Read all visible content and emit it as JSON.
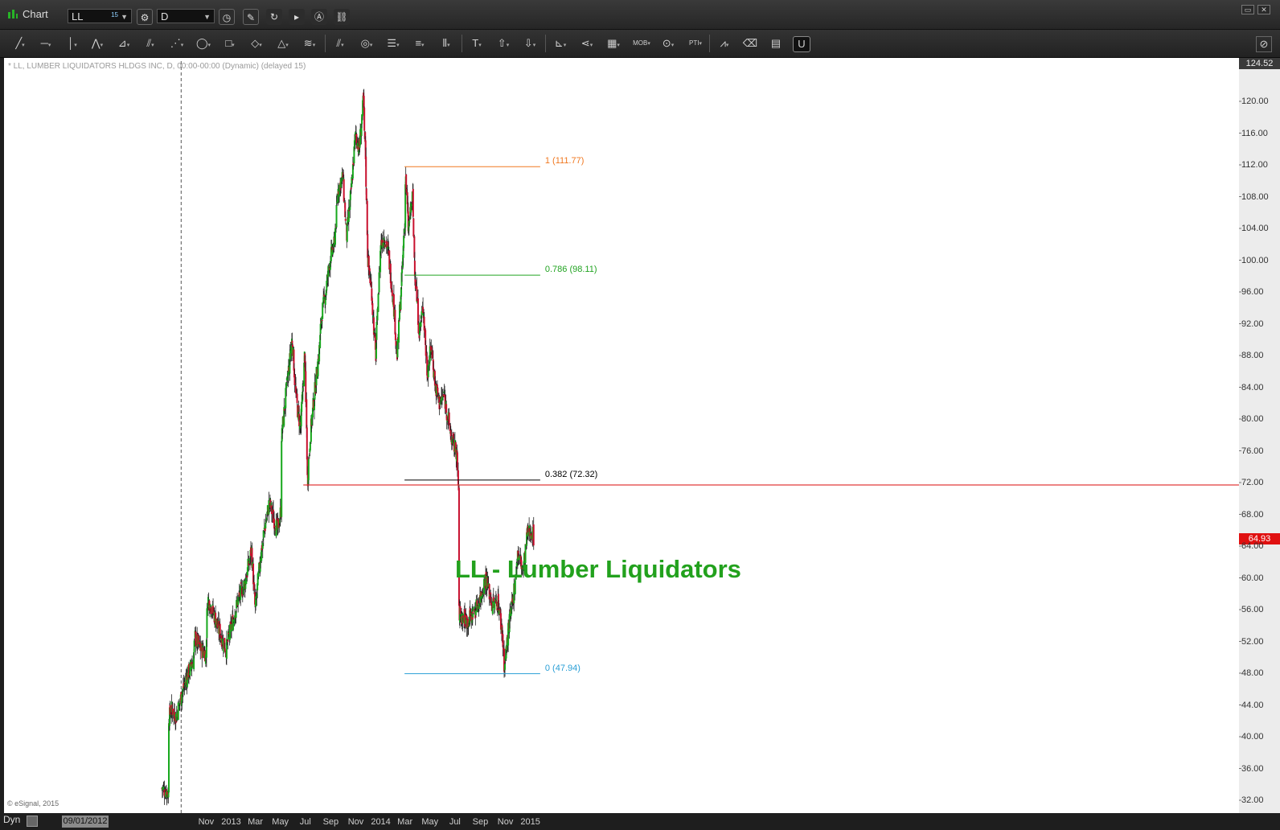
{
  "window": {
    "title": "Chart",
    "symbol": "LL",
    "symbol_sup": "15",
    "interval": "D",
    "symbol_icon": "link-icon",
    "toolbar_icons": [
      "line-tool-icon",
      "horizontal-line-icon",
      "vertical-line-icon",
      "zigzag-icon",
      "fan-icon",
      "andrews-fork-icon",
      "gann-fan-icon",
      "ellipse-icon",
      "rectangle-icon",
      "rotated-rect-icon",
      "triangle-icon",
      "channel-icon",
      "parallel-lines-icon",
      "circles-icon",
      "fib-retracement-icon",
      "fib-extension-icon",
      "fib-timezone-icon",
      "text-icon",
      "arrow-up-icon",
      "arrow-down-icon",
      "elliott-icon",
      "pitchfork-icon",
      "grid-icon",
      "mob-icon",
      "cycle-icon",
      "pti-icon",
      "stats-icon",
      "eraser-icon",
      "comment-icon",
      "magnet-icon"
    ],
    "toolbar_texts": {
      "mob": "MOB",
      "pti": "PTI",
      "text": "T"
    }
  },
  "header": {
    "info": "* LL, LUMBER LIQUIDATORS HLDGS INC, D, 00:00-00:00 (Dynamic) (delayed 15)",
    "copyright": "© eSignal, 2015",
    "dyn_label": "Dyn",
    "cursor_date": "09/01/2012"
  },
  "colors": {
    "up": "#17a81c",
    "down": "#c8102e",
    "wick": "#222222",
    "support": "#e23a3a",
    "fib_1": "#f07820",
    "fib_786": "#21a321",
    "fib_382": "#000000",
    "fib_0": "#2a9fd6",
    "annotation": "#22a11d"
  },
  "chart_data": {
    "type": "candlestick",
    "title": "LL - Lumber Liquidators",
    "ylim": [
      30.5,
      124.52
    ],
    "y_ticks": [
      32,
      36,
      40,
      44,
      48,
      52,
      56,
      60,
      64,
      68,
      72,
      76,
      80,
      84,
      88,
      92,
      96,
      100,
      104,
      108,
      112,
      116,
      120
    ],
    "y_tick_labels": [
      "32.00",
      "36.00",
      "40.00",
      "44.00",
      "48.00",
      "52.00",
      "56.00",
      "60.00",
      "64.00",
      "68.00",
      "72.00",
      "76.00",
      "80.00",
      "84.00",
      "88.00",
      "92.00",
      "96.00",
      "100.00",
      "104.00",
      "108.00",
      "112.00",
      "116.00",
      "120.00"
    ],
    "x_ticks": [
      "Nov",
      "2013",
      "Mar",
      "May",
      "Jul",
      "Sep",
      "Nov",
      "2014",
      "Mar",
      "May",
      "Jul",
      "Sep",
      "Nov",
      "2015"
    ],
    "last_price": 64.93,
    "top_price": 124.52,
    "price_path": [
      [
        "2012-07-16",
        33.5
      ],
      [
        "2012-08-01",
        33.0
      ],
      [
        "2012-08-03",
        42.5
      ],
      [
        "2012-08-10",
        43.5
      ],
      [
        "2012-08-20",
        42.5
      ],
      [
        "2012-09-01",
        45.0
      ],
      [
        "2012-09-15",
        47.5
      ],
      [
        "2012-10-01",
        49.5
      ],
      [
        "2012-10-05",
        52.5
      ],
      [
        "2012-10-20",
        51.0
      ],
      [
        "2012-11-01",
        50.5
      ],
      [
        "2012-11-05",
        57.5
      ],
      [
        "2012-11-20",
        55.5
      ],
      [
        "2012-12-05",
        53.0
      ],
      [
        "2012-12-20",
        51.0
      ],
      [
        "2013-01-05",
        54.5
      ],
      [
        "2013-01-20",
        57.5
      ],
      [
        "2013-02-05",
        59.5
      ],
      [
        "2013-02-20",
        63.5
      ],
      [
        "2013-03-01",
        56.0
      ],
      [
        "2013-03-15",
        63.0
      ],
      [
        "2013-03-25",
        66.5
      ],
      [
        "2013-04-05",
        69.5
      ],
      [
        "2013-04-15",
        67.5
      ],
      [
        "2013-04-25",
        66.0
      ],
      [
        "2013-05-03",
        68.5
      ],
      [
        "2013-05-05",
        78.0
      ],
      [
        "2013-05-20",
        85.5
      ],
      [
        "2013-05-30",
        90.0
      ],
      [
        "2013-06-10",
        82.0
      ],
      [
        "2013-06-20",
        79.0
      ],
      [
        "2013-06-30",
        88.0
      ],
      [
        "2013-07-07",
        72.5
      ],
      [
        "2013-07-15",
        79.0
      ],
      [
        "2013-07-30",
        86.0
      ],
      [
        "2013-08-05",
        89.0
      ],
      [
        "2013-08-10",
        93.0
      ],
      [
        "2013-08-20",
        96.0
      ],
      [
        "2013-09-01",
        100.5
      ],
      [
        "2013-09-10",
        102.0
      ],
      [
        "2013-09-20",
        109.0
      ],
      [
        "2013-10-01",
        110.5
      ],
      [
        "2013-10-10",
        103.0
      ],
      [
        "2013-10-20",
        108.0
      ],
      [
        "2013-11-01",
        116.0
      ],
      [
        "2013-11-10",
        114.0
      ],
      [
        "2013-11-20",
        120.0
      ],
      [
        "2013-11-25",
        113.0
      ],
      [
        "2013-12-01",
        100.0
      ],
      [
        "2013-12-10",
        96.0
      ],
      [
        "2013-12-20",
        88.0
      ],
      [
        "2014-01-01",
        102.0
      ],
      [
        "2014-01-10",
        103.0
      ],
      [
        "2014-01-20",
        101.0
      ],
      [
        "2014-02-01",
        95.0
      ],
      [
        "2014-02-10",
        88.0
      ],
      [
        "2014-02-20",
        96.0
      ],
      [
        "2014-02-28",
        104.0
      ],
      [
        "2014-03-03",
        110.5
      ],
      [
        "2014-03-10",
        104.0
      ],
      [
        "2014-03-20",
        108.0
      ],
      [
        "2014-03-25",
        99.0
      ],
      [
        "2014-04-05",
        91.0
      ],
      [
        "2014-04-15",
        94.0
      ],
      [
        "2014-04-25",
        86.0
      ],
      [
        "2014-05-05",
        89.0
      ],
      [
        "2014-05-15",
        84.0
      ],
      [
        "2014-05-25",
        82.0
      ],
      [
        "2014-06-05",
        83.0
      ],
      [
        "2014-06-15",
        80.0
      ],
      [
        "2014-06-25",
        77.0
      ],
      [
        "2014-07-05",
        76.0
      ],
      [
        "2014-07-10",
        71.0
      ],
      [
        "2014-07-12",
        55.5
      ],
      [
        "2014-08-01",
        54.5
      ],
      [
        "2014-08-20",
        56.0
      ],
      [
        "2014-09-01",
        57.5
      ],
      [
        "2014-09-15",
        60.0
      ],
      [
        "2014-10-01",
        56.5
      ],
      [
        "2014-10-15",
        57.0
      ],
      [
        "2014-10-25",
        53.0
      ],
      [
        "2014-10-30",
        48.5
      ],
      [
        "2014-11-10",
        54.0
      ],
      [
        "2014-11-20",
        57.0
      ],
      [
        "2014-12-01",
        63.0
      ],
      [
        "2014-12-15",
        61.0
      ],
      [
        "2014-12-25",
        65.5
      ],
      [
        "2015-01-05",
        66.0
      ],
      [
        "2015-01-10",
        64.93
      ]
    ],
    "annotations": [
      {
        "type": "horizontal-line",
        "name": "support",
        "y": 71.7,
        "x_start": "2013-06-26",
        "x_end": "2015-02-10",
        "color_key": "support"
      },
      {
        "type": "fib-level",
        "label": "1 (111.77)",
        "y": 111.77,
        "x_start": "2014-02-28",
        "x_end": "2015-01-25",
        "color_key": "fib_1"
      },
      {
        "type": "fib-level",
        "label": "0.786 (98.11)",
        "y": 98.11,
        "x_start": "2014-02-28",
        "x_end": "2015-01-25",
        "color_key": "fib_786"
      },
      {
        "type": "fib-level",
        "label": "0.382 (72.32)",
        "y": 72.32,
        "x_start": "2014-02-28",
        "x_end": "2015-01-25",
        "color_key": "fib_382"
      },
      {
        "type": "fib-level",
        "label": "0 (47.94)",
        "y": 47.94,
        "x_start": "2014-02-28",
        "x_end": "2015-01-25",
        "color_key": "fib_0"
      }
    ],
    "grid": false,
    "cursor_line_date": "2012-09-01"
  }
}
